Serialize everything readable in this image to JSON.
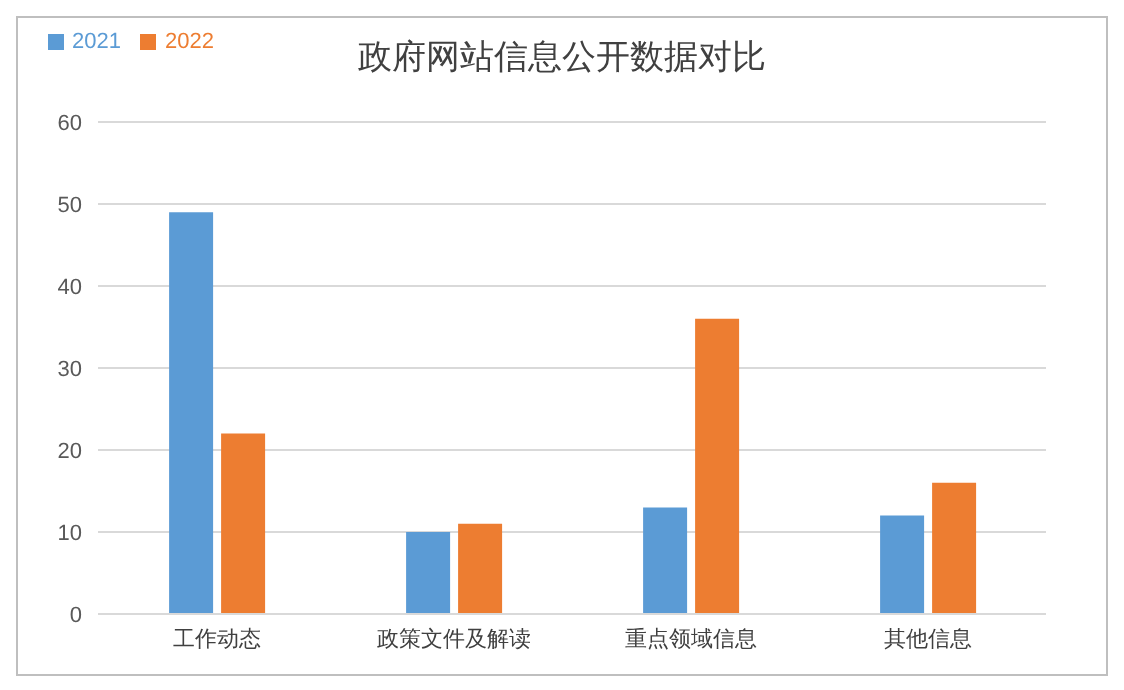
{
  "chart_data": {
    "type": "bar",
    "title": "政府网站信息公开数据对比",
    "categories": [
      "工作动态",
      "政策文件及解读",
      "重点领域信息",
      "其他信息"
    ],
    "series": [
      {
        "name": "2021",
        "color": "#5b9bd5",
        "values": [
          49,
          10,
          13,
          12
        ]
      },
      {
        "name": "2022",
        "color": "#ed7d31",
        "values": [
          22,
          11,
          36,
          16
        ]
      }
    ],
    "ylim": [
      0,
      60
    ],
    "yticks": [
      0,
      10,
      20,
      30,
      40,
      50,
      60
    ],
    "grid": "y",
    "legend": "top left"
  }
}
